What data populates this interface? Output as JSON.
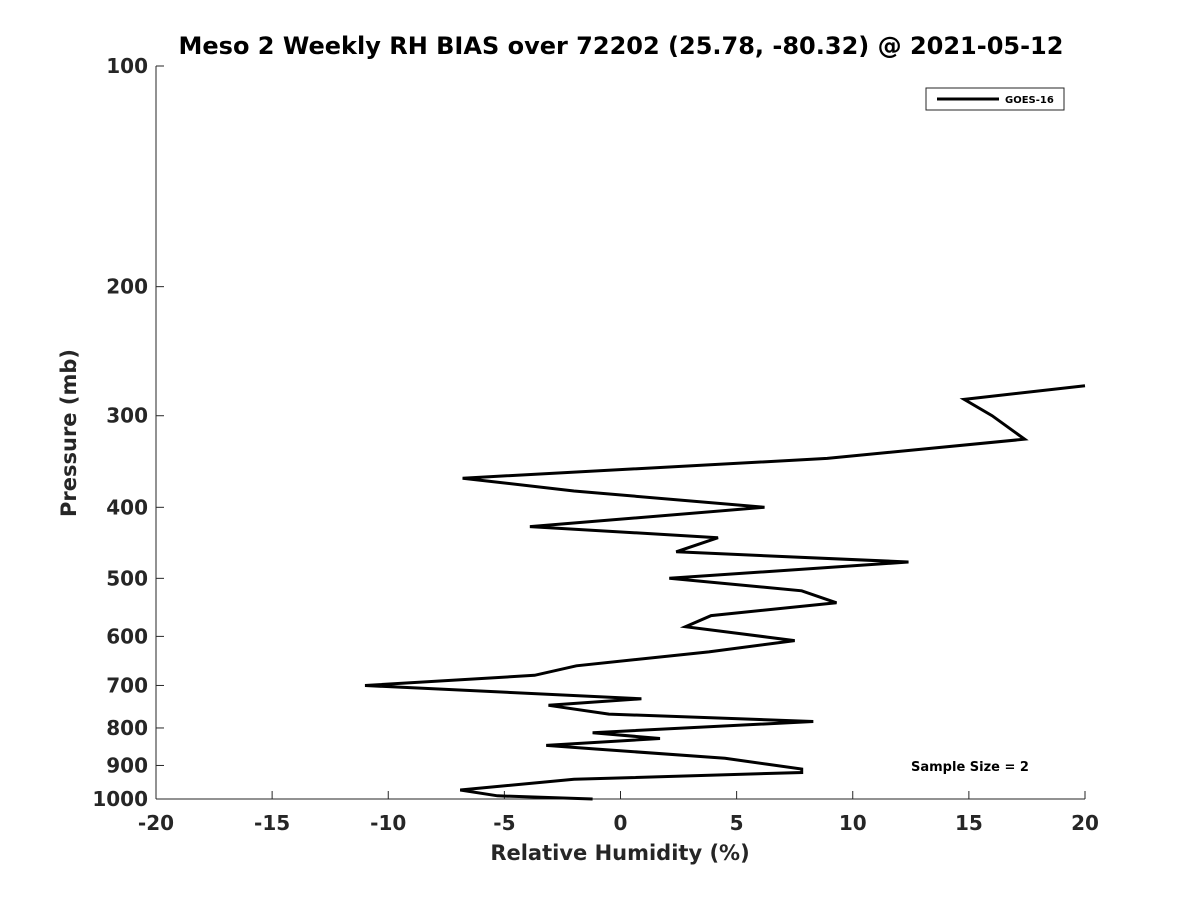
{
  "chart_data": {
    "type": "line",
    "title": "Meso 2 Weekly RH BIAS over 72202 (25.78, -80.32) @ 2021-05-12",
    "xlabel": "Relative Humidity (%)",
    "ylabel": "Pressure (mb)",
    "xlim": [
      -20,
      20
    ],
    "ylim": [
      100,
      1000
    ],
    "yscale": "log",
    "y_reversed": true,
    "grid": false,
    "xticks": [
      -20,
      -15,
      -10,
      -5,
      0,
      5,
      10,
      15,
      20
    ],
    "xtick_labels": [
      "-20",
      "-15",
      "-10",
      "-5",
      "0",
      "5",
      "10",
      "15",
      "20"
    ],
    "yticks": [
      100,
      200,
      300,
      400,
      500,
      600,
      700,
      800,
      900,
      1000
    ],
    "ytick_labels": [
      "100",
      "200",
      "300",
      "400",
      "500",
      "600",
      "700",
      "800",
      "900",
      "1000"
    ],
    "legend": {
      "position": "top-right",
      "entries": [
        "GOES-16"
      ]
    },
    "annotation": "Sample Size = 2",
    "series": [
      {
        "name": "GOES-16",
        "color": "#000000",
        "x": [
          -1.2,
          -5.3,
          -6.9,
          -2.0,
          7.8,
          7.8,
          4.5,
          -1.0,
          -3.2,
          1.7,
          -1.2,
          8.3,
          -0.5,
          -3.1,
          0.9,
          -11.0,
          -3.7,
          -1.9,
          3.8,
          7.5,
          2.8,
          3.9,
          9.3,
          7.8,
          2.1,
          12.4,
          2.4,
          4.2,
          -3.9,
          6.2,
          -2.0,
          -6.8,
          8.9,
          17.4,
          16.0,
          14.8,
          20.0
        ],
        "pressure": [
          1000,
          990,
          972,
          940,
          920,
          910,
          880,
          855,
          845,
          827,
          812,
          784,
          766,
          745,
          730,
          700,
          678,
          658,
          630,
          608,
          582,
          562,
          540,
          520,
          500,
          475,
          460,
          440,
          425,
          400,
          380,
          365,
          343,
          323,
          300,
          285,
          273
        ]
      }
    ]
  }
}
